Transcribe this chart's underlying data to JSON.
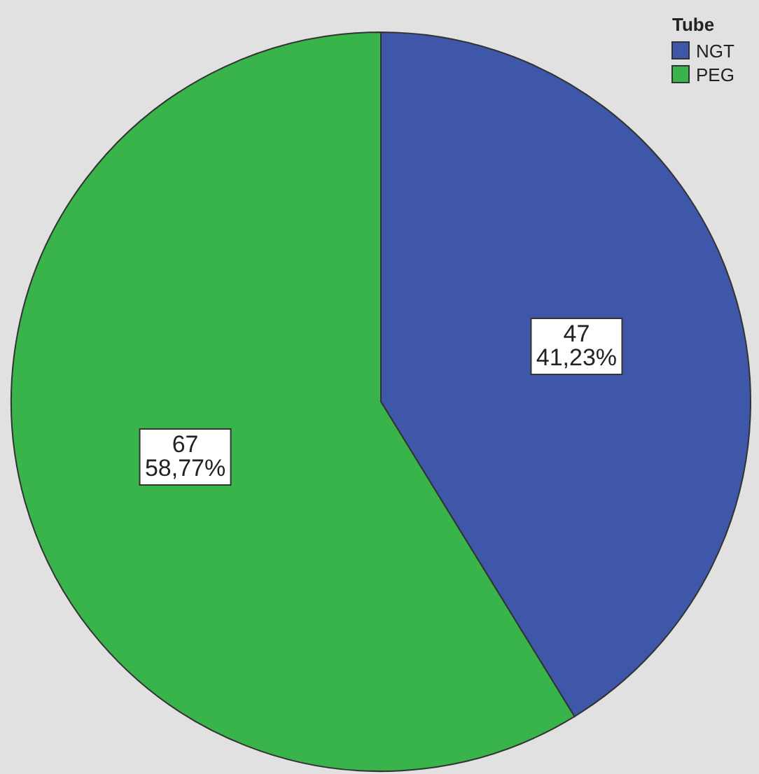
{
  "chart_data": {
    "type": "pie",
    "categories": [
      "NGT",
      "PEG"
    ],
    "values": [
      47,
      67
    ],
    "colors": [
      "#3f57a8",
      "#38b44a"
    ],
    "value_labels": [
      "47\n41,23%",
      "67\n58,77%"
    ],
    "legend_title": "Tube",
    "legend": "top right"
  }
}
